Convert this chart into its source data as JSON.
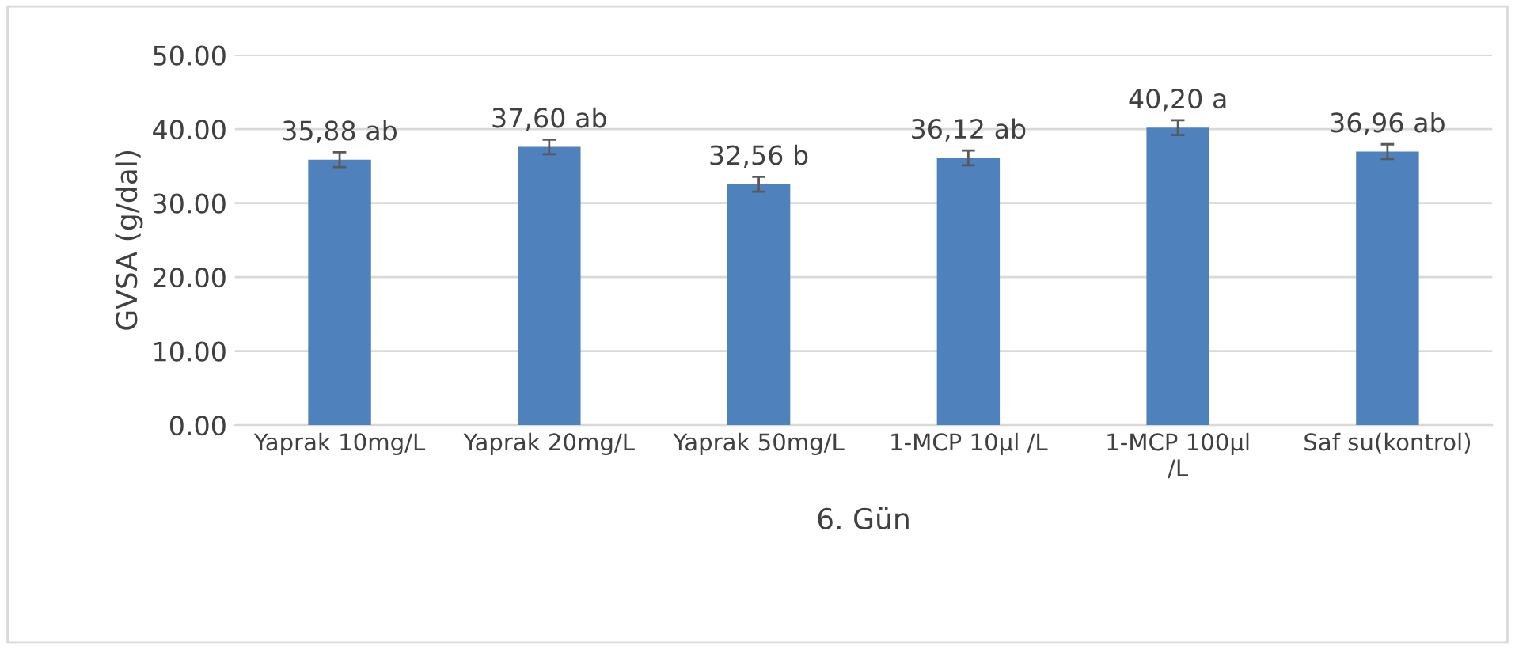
{
  "chart_data": {
    "type": "bar",
    "ylabel": "GVSA (g/dal)",
    "xlabel": "6. Gün",
    "categories": [
      "Yaprak 10mg/L",
      "Yaprak 20mg/L",
      "Yaprak 50mg/L",
      "1-MCP 10µl /L",
      "1-MCP 100µl\n/L",
      "Saf su(kontrol)"
    ],
    "values": [
      35.88,
      37.6,
      32.56,
      36.12,
      40.2,
      36.96
    ],
    "errors": [
      1.0,
      1.0,
      1.0,
      1.0,
      1.0,
      1.0
    ],
    "value_labels": [
      "35,88 ab",
      "37,60 ab",
      "32,56 b",
      "36,12 ab",
      "40,20 a",
      "36,96 ab"
    ],
    "color": "#4f81bd",
    "ylim": [
      0,
      50
    ],
    "yticks": [
      {
        "value": 0,
        "label": "0.00"
      },
      {
        "value": 10,
        "label": "10.00"
      },
      {
        "value": 20,
        "label": "20.00"
      },
      {
        "value": 30,
        "label": "30.00"
      },
      {
        "value": 40,
        "label": "40.00"
      },
      {
        "value": 50,
        "label": "50.00"
      }
    ],
    "grid": "y",
    "legend": false
  }
}
